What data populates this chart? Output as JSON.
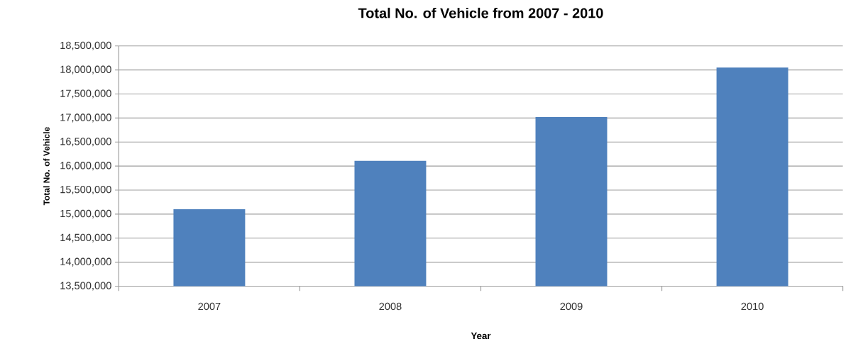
{
  "chart_data": {
    "type": "bar",
    "title": "Total No. of Vehicle from 2007 - 2010",
    "xlabel": "Year",
    "ylabel": "Total No. of Vehicle",
    "categories": [
      "2007",
      "2008",
      "2009",
      "2010"
    ],
    "values": [
      15100000,
      16110000,
      17020000,
      18050000
    ],
    "color": "#4f81bd",
    "ylim": [
      13500000,
      18500000
    ],
    "yticks": [
      {
        "value": 13500000,
        "label": "13,500,000"
      },
      {
        "value": 14000000,
        "label": "14,000,000"
      },
      {
        "value": 14500000,
        "label": "14,500,000"
      },
      {
        "value": 15000000,
        "label": "15,000,000"
      },
      {
        "value": 15500000,
        "label": "15,500,000"
      },
      {
        "value": 16000000,
        "label": "16,000,000"
      },
      {
        "value": 16500000,
        "label": "16,500,000"
      },
      {
        "value": 17000000,
        "label": "17,000,000"
      },
      {
        "value": 17500000,
        "label": "17,500,000"
      },
      {
        "value": 18000000,
        "label": "18,000,000"
      },
      {
        "value": 18500000,
        "label": "18,500,000"
      }
    ],
    "grid": "y"
  }
}
